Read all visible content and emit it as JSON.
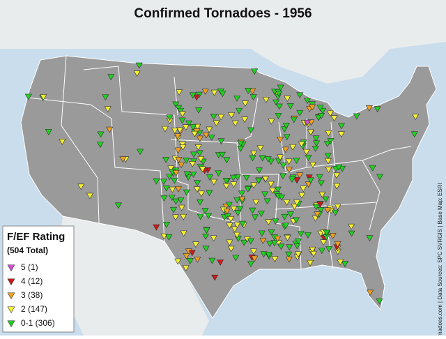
{
  "map": {
    "title": "Confirmed Tornadoes - 1956",
    "legend": {
      "title": "F/EF Rating",
      "subtitle": "(504 Total)",
      "items": [
        {
          "label": "5 (1)",
          "color": "#d24fd2"
        },
        {
          "label": "4 (12)",
          "color": "#d01818"
        },
        {
          "label": "3 (38)",
          "color": "#f0a020"
        },
        {
          "label": "2 (147)",
          "color": "#f5f032"
        },
        {
          "label": "0-1 (306)",
          "color": "#20d020"
        }
      ]
    },
    "credit": "ustornadoes.com | Data Sources: SPC SVRGIS | Base Map: ESRI"
  }
}
